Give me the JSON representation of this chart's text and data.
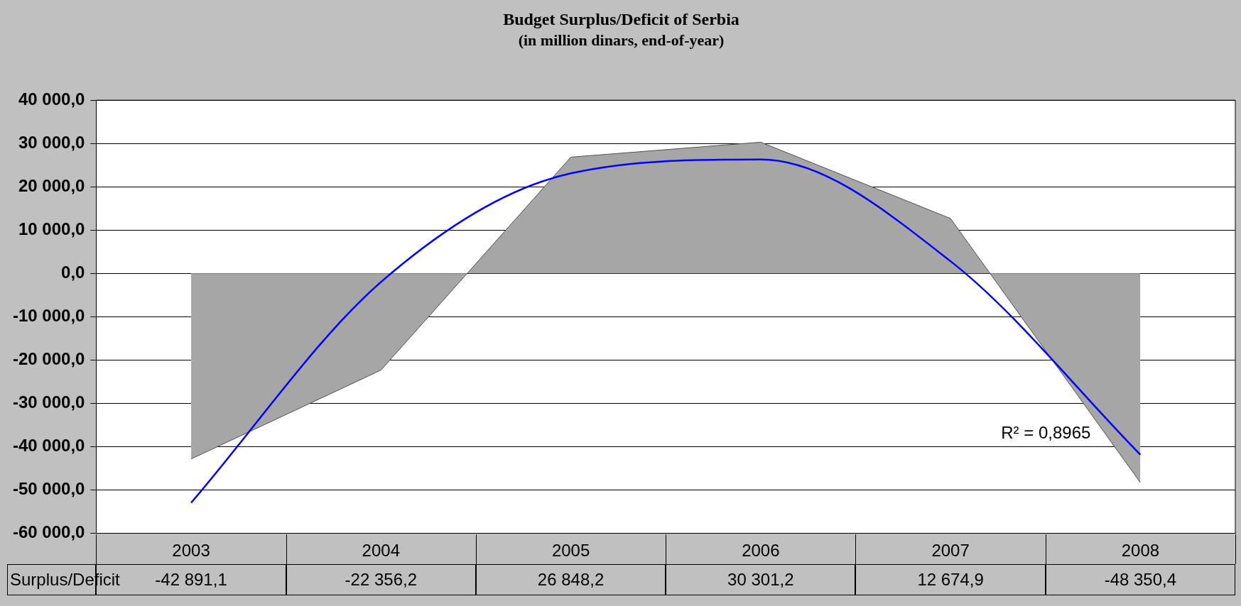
{
  "chart_data": {
    "type": "area",
    "title": "Budget Surplus/Deficit of Serbia",
    "subtitle": "(in million dinars, end-of-year)",
    "categories": [
      "2003",
      "2004",
      "2005",
      "2006",
      "2007",
      "2008"
    ],
    "series": [
      {
        "name": "Surplus/Deficit",
        "color": "#a6a6a6",
        "values": [
          -42891.1,
          -22356.2,
          26848.2,
          30301.2,
          12674.9,
          -48350.4
        ],
        "value_labels": [
          "-42 891,1",
          "-22 356,2",
          "26 848,2",
          "30 301,2",
          "12 674,9",
          "-48 350,4"
        ]
      },
      {
        "type": "line",
        "color": "#0000ff",
        "values": [
          -53000,
          -2000,
          23100,
          26300,
          2800,
          -41900
        ]
      }
    ],
    "ylim": [
      -60000,
      40000
    ],
    "yticks": [
      {
        "value": -60000,
        "label": "-60 000,0"
      },
      {
        "value": -50000,
        "label": "-50 000,0"
      },
      {
        "value": -40000,
        "label": "-40 000,0"
      },
      {
        "value": -30000,
        "label": "-30 000,0"
      },
      {
        "value": -20000,
        "label": "-20 000,0"
      },
      {
        "value": -10000,
        "label": "-10 000,0"
      },
      {
        "value": 0,
        "label": "0,0"
      },
      {
        "value": 10000,
        "label": "10 000,0"
      },
      {
        "value": 20000,
        "label": "20 000,0"
      },
      {
        "value": 30000,
        "label": "30 000,0"
      },
      {
        "value": 40000,
        "label": "40 000,0"
      }
    ],
    "grid": "y",
    "legend": false,
    "marker": "none",
    "annotations": [
      "R² = 0,8965"
    ]
  }
}
